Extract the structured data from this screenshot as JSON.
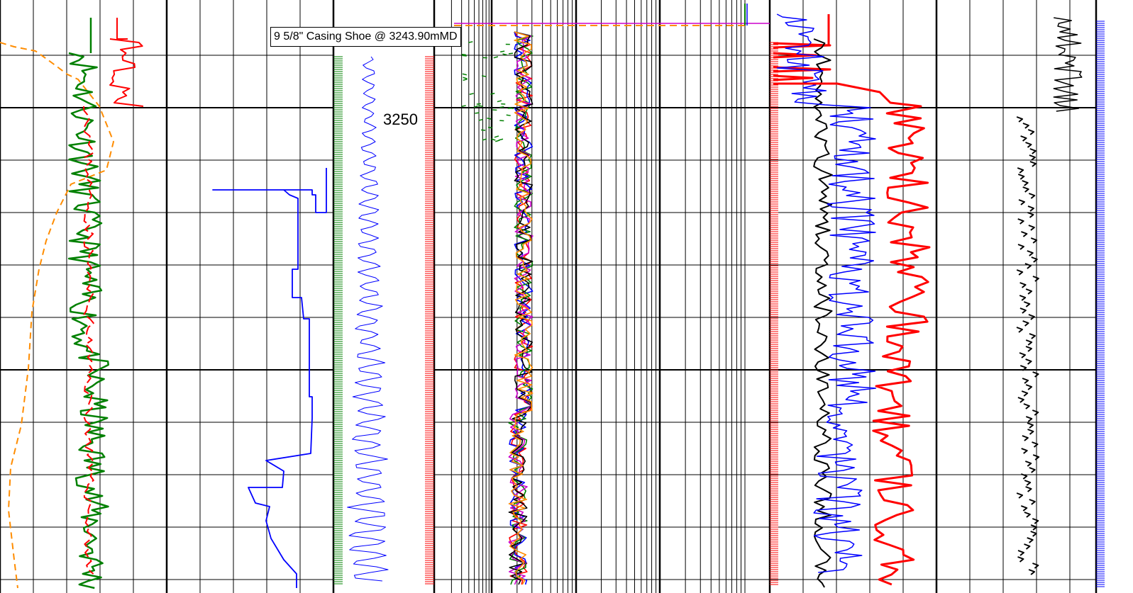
{
  "annotations": {
    "casing_shoe": "9 5/8\" Casing Shoe @ 3243.90mMD",
    "depth_label": "3250"
  },
  "colors": {
    "grid": "#000000",
    "green": "#008000",
    "red": "#ff0000",
    "orange": "#ff8c00",
    "blue": "#0000ff",
    "black": "#000000",
    "magenta": "#cc00cc"
  },
  "chart_data": {
    "type": "line",
    "title": "",
    "depth_unit": "mMD",
    "depth_marker": 3250,
    "casing_shoe_depth": 3243.9,
    "tracks": [
      {
        "id": "track-1",
        "scale": "linear",
        "curves": [
          "gamma-ray",
          "caliper-red",
          "orange-dashed"
        ]
      },
      {
        "id": "track-2",
        "scale": "linear",
        "curves": [
          "blue-step"
        ]
      },
      {
        "id": "depth-track",
        "scale": "depth",
        "curves": [
          "green-flags",
          "blue-depth-trace",
          "red-flags"
        ]
      },
      {
        "id": "track-3",
        "scale": "logarithmic",
        "curves": [
          "resistivity-bundle"
        ]
      },
      {
        "id": "track-4",
        "scale": "linear",
        "curves": [
          "red-flags-2",
          "black-wiggle",
          "blue-noisy",
          "red-thick"
        ]
      },
      {
        "id": "track-5",
        "scale": "linear",
        "curves": [
          "black-sparse",
          "blue-right-edge"
        ]
      }
    ]
  }
}
